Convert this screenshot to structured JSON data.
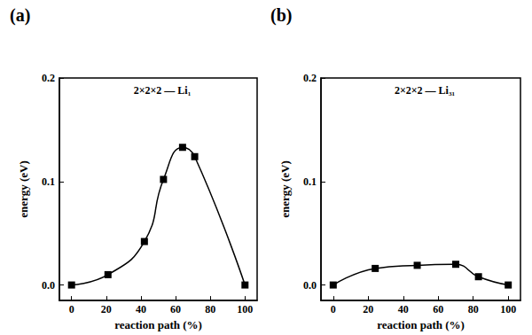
{
  "chart_data": [
    {
      "type": "line",
      "annotation": "(a)",
      "title": "2×2×2 — Li₁",
      "x_label": "reaction path (%)",
      "y_label": "energy (eV)",
      "x": [
        0,
        21,
        42,
        53,
        64,
        71,
        100
      ],
      "series": [
        {
          "name": "Li₁",
          "color": "#000000",
          "marker": "square",
          "line_style": "smooth",
          "values": [
            0.0,
            0.01,
            0.042,
            0.102,
            0.133,
            0.124,
            0.0
          ]
        }
      ],
      "xlim": [
        -7,
        107
      ],
      "xticks": [
        0,
        20,
        40,
        60,
        80,
        100
      ],
      "ylim": [
        -0.015,
        0.2
      ],
      "yticks": [
        {
          "value": 0,
          "label": "0.0"
        },
        0.1,
        0.2
      ],
      "grid": false
    },
    {
      "type": "line",
      "annotation": "(b)",
      "title": "2×2×2 — Li₃₁",
      "x_label": "reaction path (%)",
      "y_label": "energy (eV)",
      "x": [
        0,
        24,
        48,
        70,
        83,
        100
      ],
      "series": [
        {
          "name": "Li₃₁",
          "color": "#000000",
          "marker": "square",
          "line_style": "smooth",
          "values": [
            0.0,
            0.016,
            0.019,
            0.02,
            0.008,
            0.0
          ]
        }
      ],
      "xlim": [
        -7,
        107
      ],
      "xticks": [
        0,
        20,
        40,
        60,
        80,
        100
      ],
      "ylim": [
        -0.015,
        0.2
      ],
      "yticks": [
        {
          "value": 0,
          "label": "0.0"
        },
        0.1,
        0.2
      ],
      "grid": false
    }
  ]
}
